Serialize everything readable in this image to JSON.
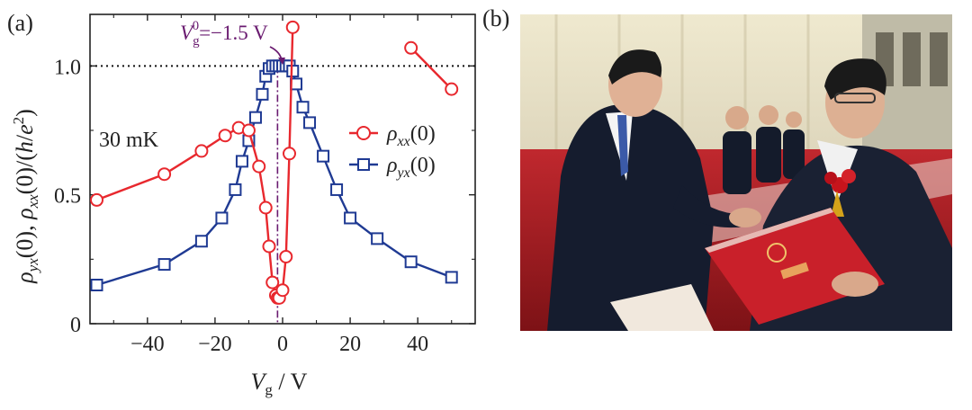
{
  "panel_a": {
    "label": "(a)",
    "temperature": "30 mK",
    "vg0_annotation": {
      "symbol": "V",
      "sub": "g",
      "sup": "0",
      "value": "=−1.5 V"
    }
  },
  "panel_b": {
    "label": "(b)"
  },
  "colors": {
    "rho_xx": "#e8282e",
    "rho_yx": "#1f3a93",
    "annotation": "#6a1b70",
    "axis": "#222222",
    "reference_line": "#111111"
  },
  "chart_data": {
    "type": "line",
    "xlabel": "V_g / V",
    "ylabel": "ρ_yx(0), ρ_xx(0)/(h/e²)",
    "xlim": [
      -57,
      57
    ],
    "ylim": [
      0,
      1.2
    ],
    "xticks": [
      -40,
      -20,
      0,
      20,
      40
    ],
    "yticks": [
      0,
      0.5,
      1.0
    ],
    "xtick_labels": [
      "−40",
      "−20",
      "0",
      "20",
      "40"
    ],
    "ytick_labels": [
      "0",
      "0.5",
      "1.0"
    ],
    "reference_line_y": 1.0,
    "vertical_marker_x": -1.5,
    "legend_position": "center-right",
    "series": [
      {
        "name": "ρxx(0)",
        "marker": "circle",
        "x": [
          -55,
          -35,
          -24,
          -17,
          -13,
          -10,
          -7,
          -5,
          -4,
          -3,
          -2,
          -1.5,
          -1,
          0,
          1,
          2,
          3
        ],
        "y": [
          0.48,
          0.58,
          0.67,
          0.73,
          0.76,
          0.75,
          0.61,
          0.45,
          0.3,
          0.16,
          0.11,
          0.1,
          0.1,
          0.13,
          0.26,
          0.66,
          1.15
        ],
        "x2": [
          38,
          50
        ],
        "y2": [
          1.07,
          0.91
        ]
      },
      {
        "name": "ρyx(0)",
        "marker": "square",
        "x": [
          -55,
          -35,
          -24,
          -18,
          -14,
          -12,
          -10,
          -8,
          -6,
          -5,
          -4,
          -3,
          -2,
          -1,
          0,
          1,
          2,
          3,
          4,
          6,
          8,
          12,
          16,
          20,
          28,
          38,
          50
        ],
        "y": [
          0.15,
          0.23,
          0.32,
          0.41,
          0.52,
          0.63,
          0.71,
          0.8,
          0.89,
          0.96,
          0.99,
          1.0,
          1.0,
          1.0,
          1.0,
          1.0,
          1.0,
          0.98,
          0.93,
          0.84,
          0.78,
          0.65,
          0.52,
          0.41,
          0.33,
          0.24,
          0.18
        ]
      }
    ]
  }
}
